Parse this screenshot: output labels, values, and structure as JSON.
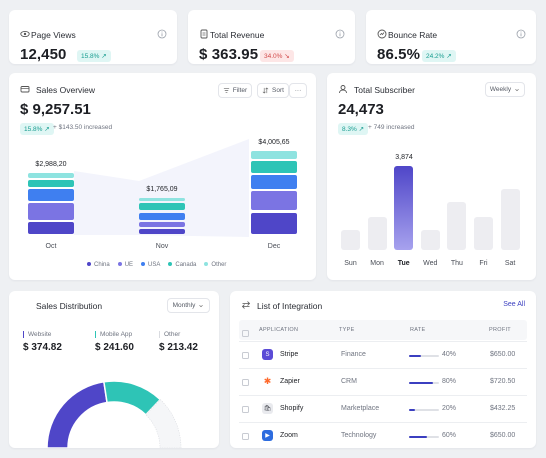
{
  "stats": [
    {
      "title": "Page Views",
      "value": "12,450",
      "badge": "15.8% ↗",
      "trend": "up",
      "icon": "eye-icon"
    },
    {
      "title": "Total Revenue",
      "value": "$ 363.95",
      "badge": "34.0% ↘",
      "trend": "down",
      "icon": "document-icon"
    },
    {
      "title": "Bounce Rate",
      "value": "86.5%",
      "badge": "24.2% ↗",
      "trend": "up",
      "icon": "chart-icon"
    }
  ],
  "sales_overview": {
    "title": "Sales Overview",
    "value": "$ 9,257.51",
    "badge": "15.8% ↗",
    "delta": "+ $143.50 increased",
    "filter_label": "Filter",
    "sort_label": "Sort",
    "more_label": "···"
  },
  "total_subscriber": {
    "title": "Total Subscriber",
    "value": "24,473",
    "badge": "8.3% ↗",
    "delta": "+ 749 increased",
    "period": "Weekly"
  },
  "sales_distribution": {
    "title": "Sales Distribution",
    "period": "Monthly",
    "items": [
      {
        "label": "Website",
        "value": "$ 374.82",
        "color": "#4f46c8"
      },
      {
        "label": "Mobile App",
        "value": "$ 241.60",
        "color": "#2ec4b6"
      },
      {
        "label": "Other",
        "value": "$ 213.42",
        "color": "#d9dbe0"
      }
    ]
  },
  "integration": {
    "title": "List of Integration",
    "see_all": "See All",
    "headers": [
      "APPLICATION",
      "TYPE",
      "RATE",
      "PROFIT"
    ],
    "rows": [
      {
        "name": "Stripe",
        "type": "Finance",
        "rate_label": "40%",
        "rate": 0.4,
        "profit": "$650.00",
        "icon_color": "#5b4bd6",
        "icon_glyph": "S",
        "icon": "stripe-icon"
      },
      {
        "name": "Zapier",
        "type": "CRM",
        "rate_label": "80%",
        "rate": 0.8,
        "profit": "$720.50",
        "icon_color": "#ff6a2c",
        "icon_glyph": "✱",
        "icon": "zapier-icon"
      },
      {
        "name": "Shopify",
        "type": "Marketplace",
        "rate_label": "20%",
        "rate": 0.2,
        "profit": "$432.25",
        "icon_color": "#e9eaee",
        "icon_glyph": "🛍",
        "icon": "shopify-icon"
      },
      {
        "name": "Zoom",
        "type": "Technology",
        "rate_label": "60%",
        "rate": 0.6,
        "profit": "$650.00",
        "icon_color": "#2d6cdf",
        "icon_glyph": "▶",
        "icon": "zoom-icon"
      }
    ]
  },
  "colors": {
    "china": "#4f46c8",
    "ue": "#7b74e3",
    "usa": "#3f7ff0",
    "canada": "#2ec4b6",
    "other": "#8ee3e0"
  },
  "chart_data": [
    {
      "type": "bar",
      "title": "Sales Overview",
      "categories": [
        "Oct",
        "Nov",
        "Dec"
      ],
      "totals": [
        2988.2,
        1765.09,
        4005.65
      ],
      "total_labels": [
        "$2,988,20",
        "$1,765,09",
        "$4,005,65"
      ],
      "series": [
        {
          "name": "China",
          "values": [
            6,
            3,
            10
          ]
        },
        {
          "name": "UE",
          "values": [
            8,
            3,
            9
          ]
        },
        {
          "name": "USA",
          "values": [
            6,
            4,
            7
          ]
        },
        {
          "name": "Canada",
          "values": [
            4,
            4,
            6
          ]
        },
        {
          "name": "Other",
          "values": [
            3,
            2,
            4
          ]
        }
      ],
      "legend": "bottom"
    },
    {
      "type": "bar",
      "title": "Total Subscriber",
      "categories": [
        "Sun",
        "Mon",
        "Tue",
        "Wed",
        "Thu",
        "Fri",
        "Sat"
      ],
      "values": [
        900,
        1500,
        3874,
        900,
        2200,
        1500,
        2800
      ],
      "highlight": "Tue",
      "highlight_label": "3,874"
    },
    {
      "type": "pie",
      "title": "Sales Distribution",
      "categories": [
        "Website",
        "Mobile App",
        "Other"
      ],
      "values": [
        374.82,
        241.6,
        213.42
      ]
    }
  ]
}
